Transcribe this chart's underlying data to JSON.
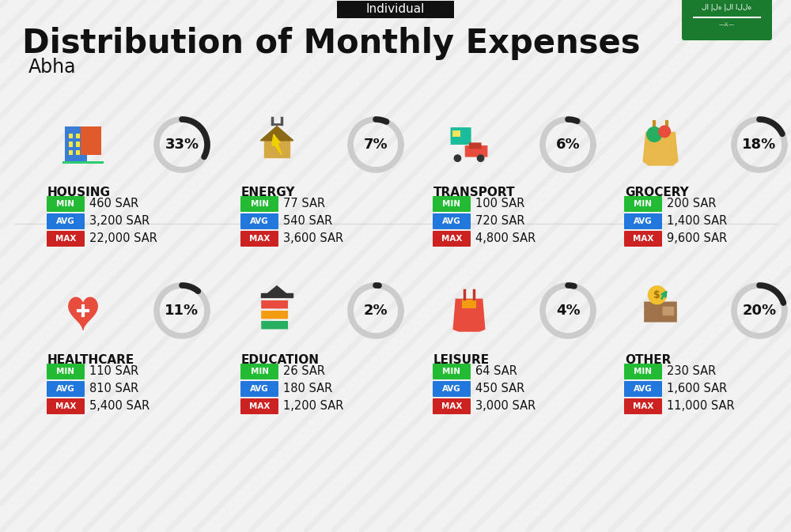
{
  "title": "Distribution of Monthly Expenses",
  "subtitle": "Abha",
  "tag": "Individual",
  "background_color": "#f2f2f2",
  "categories": [
    {
      "name": "HOUSING",
      "percent": 33,
      "min_val": "460 SAR",
      "avg_val": "3,200 SAR",
      "max_val": "22,000 SAR",
      "row": 0,
      "col": 0
    },
    {
      "name": "ENERGY",
      "percent": 7,
      "min_val": "77 SAR",
      "avg_val": "540 SAR",
      "max_val": "3,600 SAR",
      "row": 0,
      "col": 1
    },
    {
      "name": "TRANSPORT",
      "percent": 6,
      "min_val": "100 SAR",
      "avg_val": "720 SAR",
      "max_val": "4,800 SAR",
      "row": 0,
      "col": 2
    },
    {
      "name": "GROCERY",
      "percent": 18,
      "min_val": "200 SAR",
      "avg_val": "1,400 SAR",
      "max_val": "9,600 SAR",
      "row": 0,
      "col": 3
    },
    {
      "name": "HEALTHCARE",
      "percent": 11,
      "min_val": "110 SAR",
      "avg_val": "810 SAR",
      "max_val": "5,400 SAR",
      "row": 1,
      "col": 0
    },
    {
      "name": "EDUCATION",
      "percent": 2,
      "min_val": "26 SAR",
      "avg_val": "180 SAR",
      "max_val": "1,200 SAR",
      "row": 1,
      "col": 1
    },
    {
      "name": "LEISURE",
      "percent": 4,
      "min_val": "64 SAR",
      "avg_val": "450 SAR",
      "max_val": "3,000 SAR",
      "row": 1,
      "col": 2
    },
    {
      "name": "OTHER",
      "percent": 20,
      "min_val": "230 SAR",
      "avg_val": "1,600 SAR",
      "max_val": "11,000 SAR",
      "row": 1,
      "col": 3
    }
  ],
  "min_color": "#22bb33",
  "avg_color": "#2277dd",
  "max_color": "#cc2222",
  "label_text_color": "#ffffff",
  "title_color": "#111111",
  "circle_arc_color": "#222222",
  "circle_bg_color": "#cccccc",
  "tag_bg_color": "#111111",
  "tag_text_color": "#ffffff",
  "flag_bg_color": "#1a7a2e",
  "stripe_color": "#d0d0d0",
  "divider_color": "#cccccc"
}
